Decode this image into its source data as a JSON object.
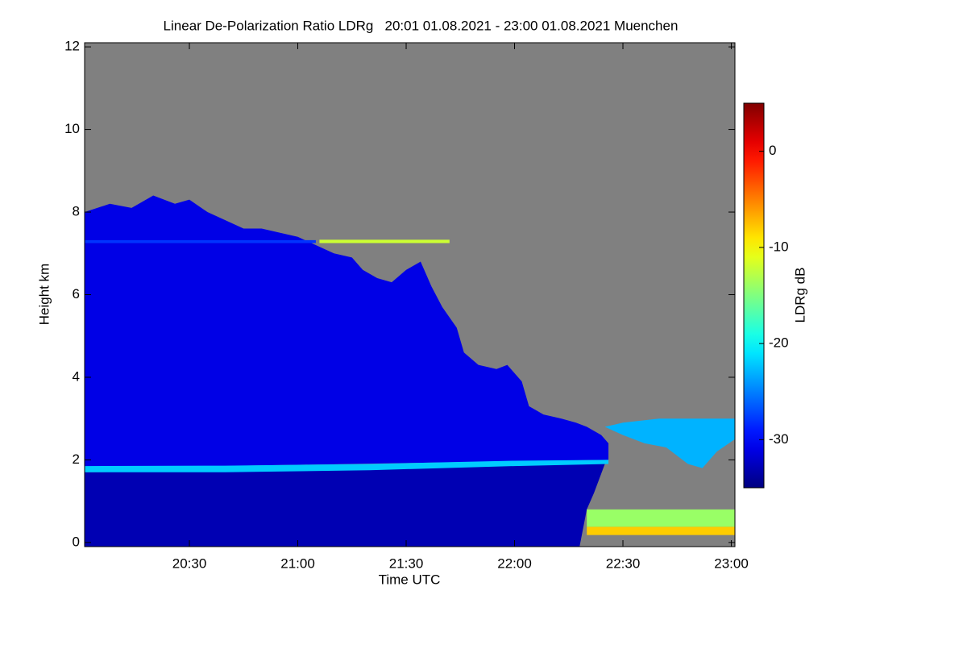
{
  "chart_data": {
    "type": "heatmap",
    "title": "Linear De-Polarization Ratio LDRg   20:01 01.08.2021 - 23:00 01.08.2021 Muenchen",
    "xlabel": "Time UTC",
    "ylabel": "Height km",
    "colorbar_label": "LDRg dB",
    "xlim": [
      1,
      181
    ],
    "xticks": [
      {
        "value": 30,
        "label": "20:30"
      },
      {
        "value": 60,
        "label": "21:00"
      },
      {
        "value": 90,
        "label": "21:30"
      },
      {
        "value": 120,
        "label": "22:00"
      },
      {
        "value": 150,
        "label": "22:30"
      },
      {
        "value": 180,
        "label": "23:00"
      }
    ],
    "ylim": [
      -0.1,
      12.1
    ],
    "yticks": [
      0,
      2,
      4,
      6,
      8,
      10,
      12
    ],
    "clim": [
      -35,
      5
    ],
    "cticks": [
      0,
      -10,
      -20,
      -30
    ],
    "regions": [
      {
        "value": -31,
        "x": [
          1,
          1,
          8,
          14,
          20,
          26,
          30,
          35,
          40,
          45,
          50,
          55,
          60,
          65,
          70,
          75,
          78,
          82,
          86,
          90,
          94,
          97,
          100,
          104,
          106,
          110,
          115,
          118,
          122,
          124,
          128,
          133,
          137,
          140,
          144,
          146,
          146,
          1
        ],
        "y": [
          1.8,
          8.0,
          8.2,
          8.1,
          8.4,
          8.2,
          8.3,
          8.0,
          7.8,
          7.6,
          7.6,
          7.5,
          7.4,
          7.2,
          7.0,
          6.9,
          6.6,
          6.4,
          6.3,
          6.6,
          6.8,
          6.2,
          5.7,
          5.2,
          4.6,
          4.3,
          4.2,
          4.3,
          3.9,
          3.3,
          3.1,
          3.0,
          2.9,
          2.8,
          2.6,
          2.4,
          2.0,
          1.8
        ]
      },
      {
        "value": -33,
        "x": [
          1,
          1,
          60,
          120,
          145,
          142,
          140,
          138
        ],
        "y": [
          -0.1,
          1.7,
          1.75,
          1.9,
          1.9,
          1.2,
          0.8,
          -0.1
        ]
      },
      {
        "value": -22,
        "x": [
          1,
          40,
          80,
          120,
          146,
          146,
          120,
          80,
          40,
          1
        ],
        "y": [
          1.7,
          1.7,
          1.75,
          1.85,
          1.9,
          2.0,
          1.98,
          1.9,
          1.86,
          1.85
        ]
      },
      {
        "value": -23,
        "x": [
          145,
          150,
          160,
          170,
          181,
          181,
          176,
          172,
          168,
          162,
          156,
          150
        ],
        "y": [
          2.8,
          2.9,
          3.0,
          3.0,
          3.0,
          2.5,
          2.2,
          1.8,
          1.9,
          2.3,
          2.4,
          2.6
        ]
      },
      {
        "value": -28,
        "x": [
          1,
          65,
          65,
          1
        ],
        "y": [
          7.25,
          7.25,
          7.32,
          7.32
        ]
      },
      {
        "value": -12,
        "x": [
          66,
          102,
          102,
          66
        ],
        "y": [
          7.25,
          7.25,
          7.33,
          7.33
        ]
      },
      {
        "value": -8,
        "x": [
          140,
          181,
          181,
          140
        ],
        "y": [
          0.18,
          0.18,
          0.38,
          0.38
        ]
      },
      {
        "value": -14,
        "x": [
          140,
          181,
          181,
          140
        ],
        "y": [
          0.38,
          0.38,
          0.8,
          0.8
        ]
      }
    ]
  }
}
